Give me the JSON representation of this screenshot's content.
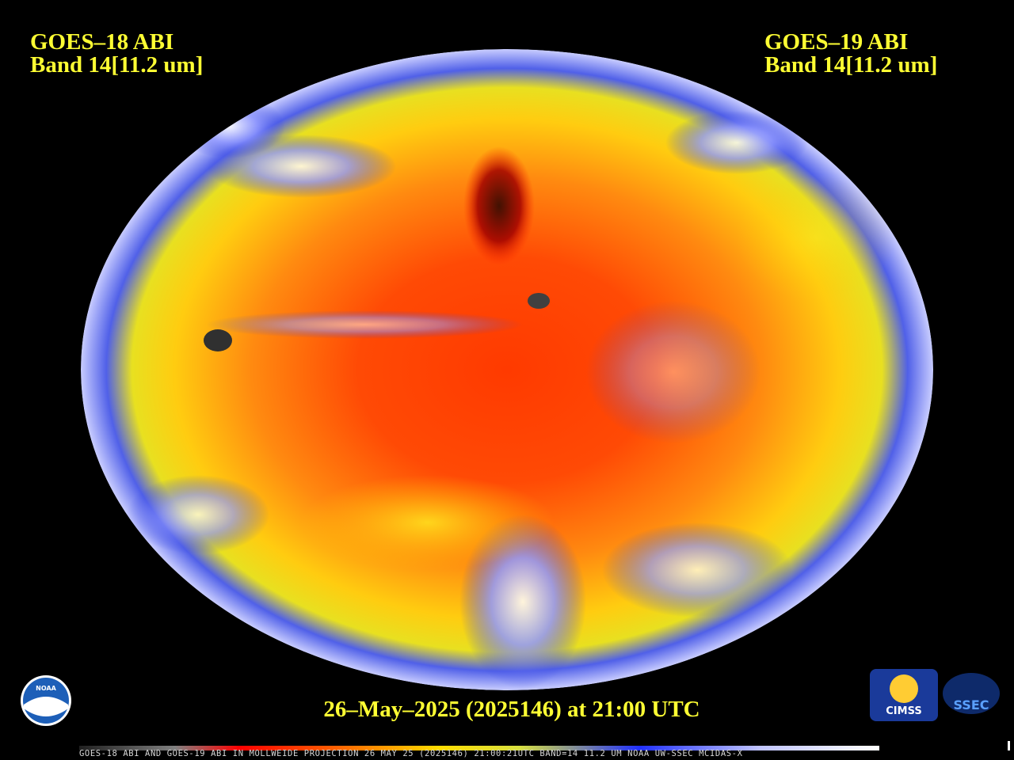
{
  "header": {
    "left": {
      "satellite": "GOES–18 ABI",
      "band": "Band 14[11.2 um]"
    },
    "right": {
      "satellite": "GOES–19 ABI",
      "band": "Band 14[11.2 um]"
    }
  },
  "timestamp": "26–May–2025 (2025146) at 21:00 UTC",
  "footer": "GOES-18 ABI AND GOES-19 ABI IN MOLLWEIDE PROJECTION 26 MAY 25 (2025146) 21:00:21UTC BAND=14 11.2 UM NOAA UW-SSEC MCIDAS-X",
  "logos": {
    "noaa": "NOAA",
    "cimss": "CIMSS",
    "ssec": "SSEC"
  }
}
